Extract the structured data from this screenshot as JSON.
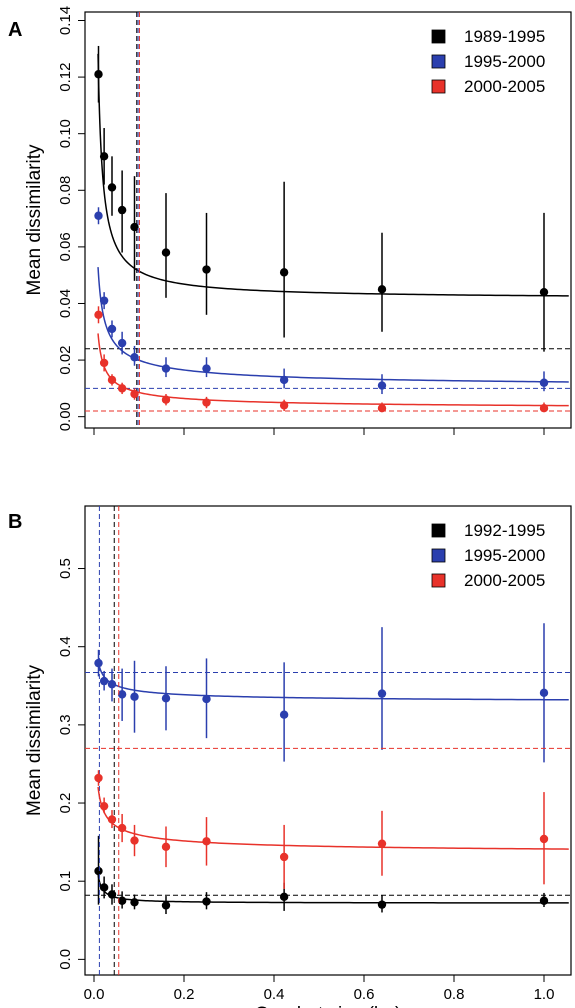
{
  "chart_data": [
    {
      "type": "scatter",
      "panel_label": "A",
      "xlabel": "",
      "ylabel": "Mean dissimilarity",
      "xlim": [
        -0.02,
        1.06
      ],
      "ylim": [
        -0.004,
        0.143
      ],
      "xticks": [
        0.0,
        0.2,
        0.4,
        0.6,
        0.8,
        1.0
      ],
      "show_xtick_labels": false,
      "yticks": [
        {
          "value": 0.0,
          "label": "0.00"
        },
        {
          "value": 0.02,
          "label": "0.02"
        },
        {
          "value": 0.04,
          "label": "0.04"
        },
        {
          "value": 0.06,
          "label": "0.06"
        },
        {
          "value": 0.08,
          "label": "0.08"
        },
        {
          "value": 0.1,
          "label": "0.10"
        },
        {
          "value": 0.12,
          "label": "0.12"
        },
        {
          "value": 0.14,
          "label": "0.14"
        }
      ],
      "grid": false,
      "legend_position": "top-right",
      "series": [
        {
          "name": "1989-1995",
          "color": "#000000",
          "x": [
            0.01,
            0.0225,
            0.04,
            0.0625,
            0.09,
            0.16,
            0.25,
            0.4225,
            0.64,
            1.0
          ],
          "y": [
            0.121,
            0.092,
            0.081,
            0.073,
            0.067,
            0.058,
            0.052,
            0.051,
            0.045,
            0.044
          ],
          "err_low": [
            0.111,
            0.082,
            0.071,
            0.058,
            0.048,
            0.042,
            0.036,
            0.028,
            0.03,
            0.023
          ],
          "err_high": [
            0.131,
            0.102,
            0.092,
            0.087,
            0.085,
            0.079,
            0.072,
            0.083,
            0.065,
            0.072
          ],
          "fit": {
            "a": 0.0415,
            "b": 0.00125,
            "p": 0.9
          },
          "hline": 0.024,
          "vline": 0.095
        },
        {
          "name": "1995-2000",
          "color": "#2b3fae",
          "x": [
            0.01,
            0.0225,
            0.04,
            0.0625,
            0.09,
            0.16,
            0.25,
            0.4225,
            0.64,
            1.0
          ],
          "y": [
            0.071,
            0.041,
            0.031,
            0.026,
            0.021,
            0.017,
            0.017,
            0.013,
            0.011,
            0.012
          ],
          "err_low": [
            0.068,
            0.038,
            0.028,
            0.022,
            0.018,
            0.014,
            0.014,
            0.01,
            0.008,
            0.009
          ],
          "err_high": [
            0.074,
            0.044,
            0.034,
            0.03,
            0.025,
            0.021,
            0.021,
            0.017,
            0.015,
            0.016
          ],
          "fit": {
            "a": 0.0098,
            "b": 0.00255,
            "p": 0.6
          },
          "hline": 0.01,
          "vline": 0.098
        },
        {
          "name": "2000-2005",
          "color": "#e8322a",
          "x": [
            0.01,
            0.0225,
            0.04,
            0.0625,
            0.09,
            0.16,
            0.25,
            0.4225,
            0.64,
            1.0
          ],
          "y": [
            0.036,
            0.019,
            0.013,
            0.01,
            0.008,
            0.006,
            0.005,
            0.004,
            0.003,
            0.003
          ],
          "err_low": [
            0.033,
            0.016,
            0.011,
            0.008,
            0.006,
            0.004,
            0.003,
            0.002,
            0.002,
            0.002
          ],
          "err_high": [
            0.039,
            0.022,
            0.015,
            0.012,
            0.01,
            0.008,
            0.007,
            0.006,
            0.005,
            0.005
          ],
          "fit": {
            "a": 0.0025,
            "b": 0.00145,
            "p": 0.62
          },
          "hline": 0.002,
          "vline": 0.101
        }
      ]
    },
    {
      "type": "scatter",
      "panel_label": "B",
      "xlabel": "Quadrat size (ha)",
      "ylabel": "Mean dissimilarity",
      "xlim": [
        -0.02,
        1.06
      ],
      "ylim": [
        -0.02,
        0.58
      ],
      "xticks": [
        0.0,
        0.2,
        0.4,
        0.6,
        0.8,
        1.0
      ],
      "show_xtick_labels": true,
      "xtick_labels": [
        "0.0",
        "0.2",
        "0.4",
        "0.6",
        "0.8",
        "1.0"
      ],
      "yticks": [
        {
          "value": 0.0,
          "label": "0.0"
        },
        {
          "value": 0.1,
          "label": "0.1"
        },
        {
          "value": 0.2,
          "label": "0.2"
        },
        {
          "value": 0.3,
          "label": "0.3"
        },
        {
          "value": 0.4,
          "label": "0.4"
        },
        {
          "value": 0.5,
          "label": "0.5"
        }
      ],
      "grid": false,
      "legend_position": "top-right",
      "series": [
        {
          "name": "1992-1995",
          "color": "#000000",
          "x": [
            0.01,
            0.0225,
            0.04,
            0.0625,
            0.09,
            0.16,
            0.25,
            0.4225,
            0.64,
            1.0
          ],
          "y": [
            0.113,
            0.092,
            0.083,
            0.075,
            0.073,
            0.069,
            0.074,
            0.08,
            0.07,
            0.075
          ],
          "err_low": [
            0.07,
            0.078,
            0.07,
            0.065,
            0.064,
            0.058,
            0.064,
            0.062,
            0.06,
            0.067
          ],
          "err_high": [
            0.158,
            0.106,
            0.096,
            0.087,
            0.083,
            0.081,
            0.086,
            0.098,
            0.082,
            0.085
          ],
          "fit": {
            "a": 0.0718,
            "b": 0.00042,
            "p": 0.95
          },
          "hline": 0.082,
          "vline": 0.045
        },
        {
          "name": "1995-2000",
          "color": "#2b3fae",
          "x": [
            0.01,
            0.0225,
            0.04,
            0.0625,
            0.09,
            0.16,
            0.25,
            0.4225,
            0.64,
            1.0
          ],
          "y": [
            0.379,
            0.356,
            0.352,
            0.339,
            0.336,
            0.334,
            0.333,
            0.313,
            0.34,
            0.341
          ],
          "err_low": [
            0.362,
            0.344,
            0.33,
            0.305,
            0.29,
            0.293,
            0.283,
            0.253,
            0.268,
            0.252
          ],
          "err_high": [
            0.396,
            0.369,
            0.372,
            0.372,
            0.382,
            0.375,
            0.385,
            0.38,
            0.425,
            0.43
          ],
          "fit": {
            "a": 0.327,
            "b": 0.0052,
            "p": 0.5
          },
          "hline": 0.367,
          "vline": 0.012
        },
        {
          "name": "2000-2005",
          "color": "#e8322a",
          "x": [
            0.01,
            0.0225,
            0.04,
            0.0625,
            0.09,
            0.16,
            0.25,
            0.4225,
            0.64,
            1.0
          ],
          "y": [
            0.232,
            0.196,
            0.179,
            0.168,
            0.152,
            0.144,
            0.151,
            0.131,
            0.148,
            0.154
          ],
          "err_low": [
            0.222,
            0.187,
            0.168,
            0.15,
            0.132,
            0.118,
            0.12,
            0.09,
            0.107,
            0.096
          ],
          "err_high": [
            0.242,
            0.207,
            0.191,
            0.186,
            0.172,
            0.17,
            0.182,
            0.172,
            0.19,
            0.214
          ],
          "fit": {
            "a": 0.133,
            "b": 0.0083,
            "p": 0.5
          },
          "hline": 0.27,
          "vline": 0.055
        }
      ]
    }
  ]
}
